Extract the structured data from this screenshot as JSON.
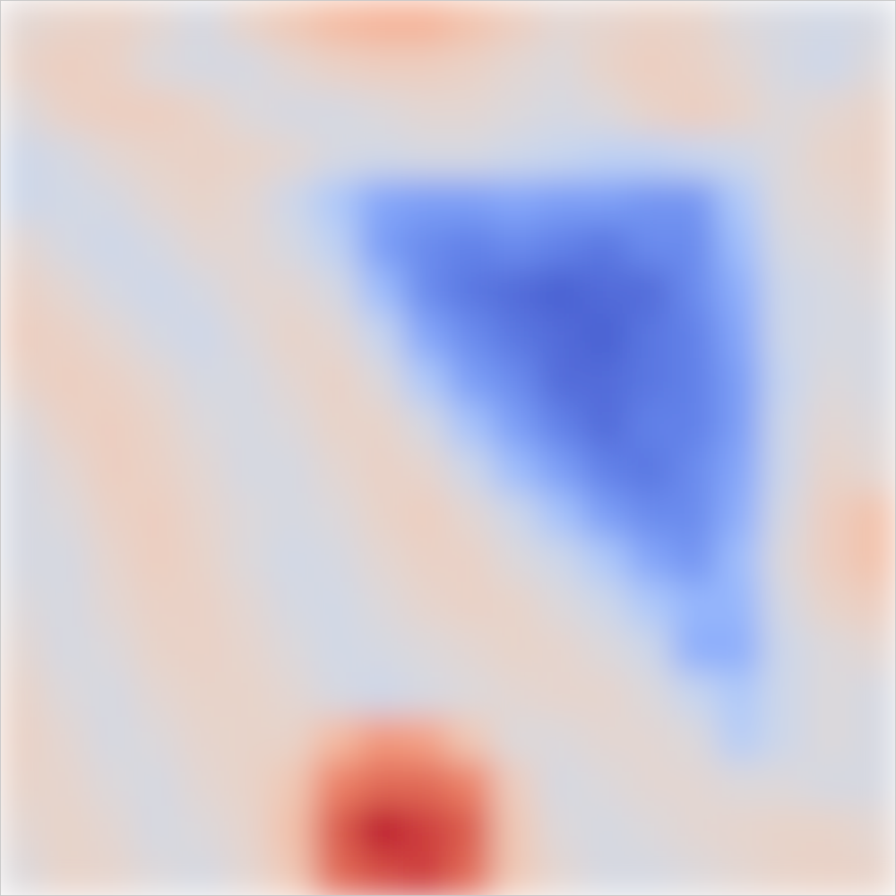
{
  "chart_data": {
    "type": "heatmap",
    "tick_labels": false,
    "zlim": [
      -1,
      1
    ],
    "cells": [
      [
        0.05,
        0.1,
        0.12,
        0.05,
        -0.05,
        0.1,
        0.2,
        0.3,
        0.35,
        0.35,
        0.25,
        0.15,
        0.05,
        0.08,
        0.12,
        0.1,
        0.0,
        -0.05,
        -0.08,
        -0.05
      ],
      [
        0.1,
        0.15,
        0.12,
        0.0,
        -0.05,
        -0.05,
        0.05,
        0.12,
        0.15,
        0.15,
        0.12,
        0.05,
        0.0,
        0.1,
        0.15,
        0.12,
        0.05,
        -0.05,
        -0.1,
        0.0
      ],
      [
        0.0,
        0.12,
        0.15,
        0.15,
        0.1,
        0.0,
        -0.05,
        -0.05,
        0.0,
        0.05,
        0.05,
        0.0,
        -0.05,
        0.0,
        0.1,
        0.15,
        0.1,
        0.0,
        0.05,
        0.1
      ],
      [
        -0.1,
        -0.05,
        0.05,
        0.1,
        0.12,
        0.1,
        0.05,
        -0.05,
        -0.08,
        -0.05,
        -0.05,
        -0.1,
        -0.15,
        -0.2,
        -0.2,
        -0.15,
        -0.1,
        0.0,
        0.1,
        0.12
      ],
      [
        -0.1,
        -0.08,
        -0.05,
        0.05,
        0.1,
        0.05,
        -0.1,
        -0.3,
        -0.55,
        -0.6,
        -0.6,
        -0.55,
        -0.6,
        -0.6,
        -0.65,
        -0.65,
        -0.3,
        0.0,
        0.05,
        0.1
      ],
      [
        0.05,
        -0.05,
        -0.1,
        -0.05,
        0.05,
        0.05,
        -0.05,
        -0.2,
        -0.6,
        -0.7,
        -0.75,
        -0.7,
        -0.75,
        -0.8,
        -0.7,
        -0.7,
        -0.4,
        -0.05,
        0.0,
        0.05
      ],
      [
        0.12,
        0.05,
        -0.05,
        -0.1,
        -0.05,
        0.05,
        0.05,
        -0.05,
        -0.4,
        -0.7,
        -0.8,
        -0.85,
        -0.9,
        -0.85,
        -0.85,
        -0.7,
        -0.5,
        -0.1,
        -0.05,
        0.0
      ],
      [
        0.15,
        0.12,
        0.05,
        -0.05,
        -0.1,
        0.0,
        0.1,
        0.05,
        -0.15,
        -0.55,
        -0.7,
        -0.8,
        -0.85,
        -0.9,
        -0.8,
        -0.75,
        -0.55,
        -0.1,
        -0.05,
        -0.05
      ],
      [
        0.1,
        0.15,
        0.12,
        0.05,
        -0.05,
        -0.05,
        0.05,
        0.12,
        0.0,
        -0.3,
        -0.6,
        -0.7,
        -0.85,
        -0.85,
        -0.8,
        -0.75,
        -0.6,
        -0.15,
        0.0,
        -0.05
      ],
      [
        0.0,
        0.12,
        0.15,
        0.1,
        0.0,
        -0.05,
        0.0,
        0.1,
        0.1,
        -0.05,
        -0.35,
        -0.6,
        -0.75,
        -0.85,
        -0.75,
        -0.75,
        -0.6,
        -0.1,
        0.05,
        0.0
      ],
      [
        -0.05,
        0.05,
        0.15,
        0.12,
        0.05,
        -0.05,
        -0.05,
        0.05,
        0.12,
        0.08,
        -0.1,
        -0.4,
        -0.6,
        -0.75,
        -0.8,
        -0.7,
        -0.55,
        -0.1,
        0.1,
        0.05
      ],
      [
        -0.05,
        0.0,
        0.12,
        0.15,
        0.08,
        0.0,
        -0.05,
        0.0,
        0.1,
        0.15,
        0.05,
        -0.1,
        -0.35,
        -0.6,
        -0.7,
        -0.7,
        -0.5,
        -0.05,
        0.15,
        0.25
      ],
      [
        -0.05,
        -0.05,
        0.08,
        0.15,
        0.1,
        0.0,
        -0.08,
        -0.05,
        0.05,
        0.12,
        0.12,
        0.0,
        -0.1,
        -0.3,
        -0.55,
        -0.65,
        -0.4,
        0.0,
        0.15,
        0.25
      ],
      [
        0.0,
        -0.05,
        0.05,
        0.12,
        0.12,
        0.05,
        -0.05,
        -0.08,
        0.0,
        0.08,
        0.12,
        0.1,
        0.0,
        -0.1,
        -0.3,
        -0.45,
        -0.45,
        -0.05,
        0.1,
        0.15
      ],
      [
        0.05,
        -0.05,
        0.0,
        0.1,
        0.12,
        0.08,
        0.0,
        -0.08,
        -0.05,
        0.0,
        0.05,
        0.1,
        0.08,
        0.0,
        -0.1,
        -0.5,
        -0.5,
        -0.1,
        0.0,
        0.05
      ],
      [
        0.1,
        0.0,
        -0.05,
        0.05,
        0.1,
        0.1,
        0.05,
        -0.05,
        -0.1,
        -0.05,
        0.0,
        0.05,
        0.08,
        0.08,
        0.0,
        -0.15,
        -0.3,
        -0.1,
        0.0,
        -0.05
      ],
      [
        0.12,
        0.05,
        -0.05,
        0.0,
        0.08,
        0.1,
        0.1,
        0.3,
        0.5,
        0.45,
        0.2,
        0.0,
        0.0,
        0.05,
        0.05,
        0.0,
        -0.25,
        -0.1,
        0.0,
        -0.05
      ],
      [
        0.1,
        0.08,
        0.0,
        -0.05,
        0.05,
        0.1,
        0.2,
        0.6,
        0.7,
        0.7,
        0.6,
        0.15,
        -0.05,
        0.0,
        0.05,
        0.05,
        0.0,
        0.0,
        -0.05,
        -0.05
      ],
      [
        0.05,
        0.1,
        0.05,
        -0.05,
        0.0,
        0.08,
        0.25,
        0.75,
        0.95,
        0.85,
        0.75,
        0.2,
        0.0,
        -0.05,
        0.0,
        0.05,
        0.08,
        0.1,
        0.1,
        0.05
      ],
      [
        0.0,
        0.1,
        0.08,
        0.0,
        -0.05,
        0.05,
        0.2,
        0.7,
        0.8,
        0.85,
        0.7,
        0.2,
        0.05,
        -0.05,
        -0.05,
        0.0,
        0.05,
        0.1,
        0.12,
        0.1
      ]
    ]
  }
}
